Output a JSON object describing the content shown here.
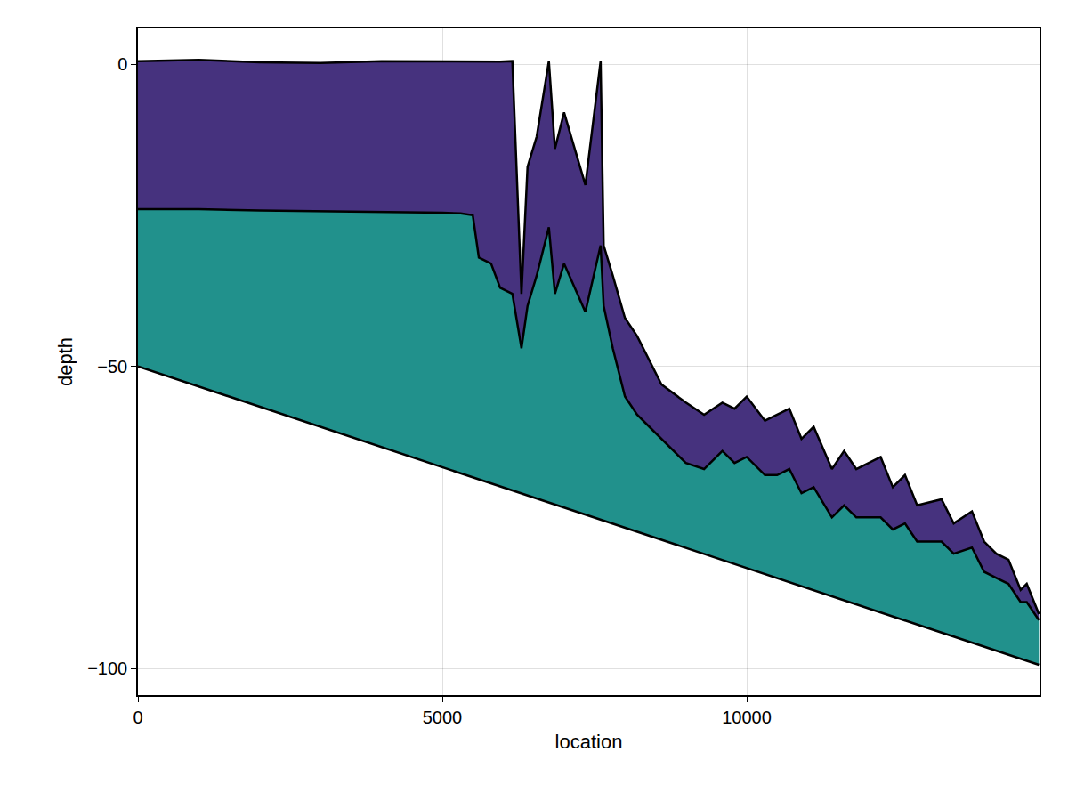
{
  "chart_data": {
    "type": "area",
    "x_label": "location",
    "y_label": "depth",
    "xlim": [
      0,
      14810
    ],
    "ylim": [
      -104.4,
      5.9
    ],
    "xticks": [
      0,
      5000,
      10000
    ],
    "yticks": [
      -100,
      -50,
      0
    ],
    "grid": true,
    "x": [
      0,
      1000,
      2000,
      3000,
      4000,
      5000,
      5300,
      5500,
      5600,
      5800,
      5950,
      6150,
      6300,
      6400,
      6550,
      6750,
      6850,
      7000,
      7350,
      7600,
      7650,
      7800,
      8000,
      8200,
      8400,
      8600,
      9000,
      9300,
      9600,
      9800,
      10000,
      10300,
      10500,
      10700,
      10900,
      11100,
      11400,
      11600,
      11800,
      12200,
      12400,
      12600,
      12800,
      13200,
      13400,
      13700,
      13900,
      14100,
      14300,
      14500,
      14600,
      14800
    ],
    "series": [
      {
        "type": "line",
        "color": "#000000",
        "x": [
          0,
          14800
        ],
        "values": [
          -50,
          -99.4
        ]
      },
      {
        "type": "area",
        "color": "#21918c",
        "values": [
          -24,
          -24,
          -24.2,
          -24.3,
          -24.5,
          -24.6,
          -24.7,
          -25,
          -32,
          -33,
          -37,
          -38,
          -47,
          -40,
          -35,
          -27,
          -38,
          -33,
          -41,
          -30,
          -40,
          -47,
          -55,
          -58,
          -60,
          -62,
          -66,
          -67,
          -64,
          -66,
          -65,
          -68,
          -68,
          -67,
          -71,
          -70,
          -75,
          -73,
          -75,
          -75,
          -77,
          -76,
          -79,
          -79,
          -81,
          -80,
          -84,
          -85,
          -86,
          -89,
          -89,
          -92
        ]
      },
      {
        "type": "area",
        "color": "#46327e",
        "values": [
          0.5,
          0.7,
          0.3,
          0.2,
          0.5,
          0.4,
          0.4,
          0.4,
          0.4,
          0.4,
          0.4,
          0.5,
          -38,
          -17,
          -12,
          0.5,
          -14,
          -8,
          -20,
          0.5,
          -30,
          -35,
          -42,
          -45,
          -49,
          -53,
          -56,
          -58,
          -56,
          -57,
          -55,
          -59,
          -58,
          -57,
          -62,
          -60,
          -67,
          -64,
          -67,
          -65,
          -70,
          -68,
          -73,
          -72,
          -76,
          -74,
          -79,
          -81,
          -82,
          -87,
          -86,
          -91
        ]
      }
    ]
  }
}
